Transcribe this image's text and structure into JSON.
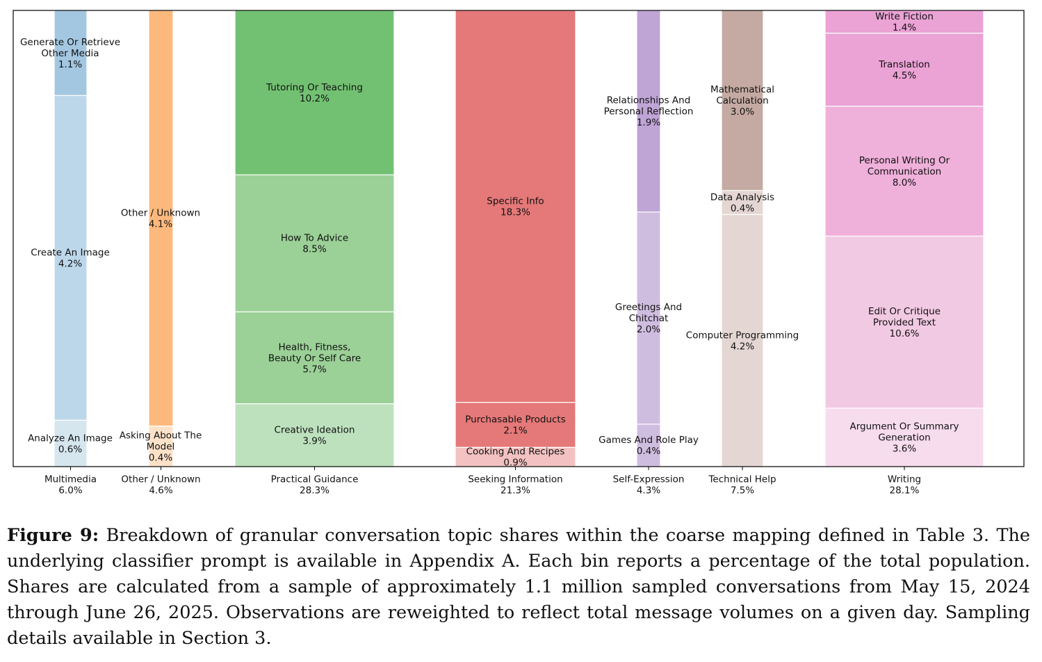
{
  "chart_data": {
    "type": "bar",
    "ylim": [
      0,
      1
    ],
    "grid": false,
    "columns": [
      {
        "label": "Multimedia",
        "share": "6.0%",
        "segments": [
          {
            "label": "Analyze An Image",
            "value": 0.6,
            "text": "0.6%",
            "color": "#d6e6ef"
          },
          {
            "label": "Create An Image",
            "value": 4.2,
            "text": "4.2%",
            "color": "#bdd7ea"
          },
          {
            "label": "Generate Or Retrieve\nOther Media",
            "value": 1.1,
            "text": "1.1%",
            "color": "#a4c7e1"
          }
        ]
      },
      {
        "label": "Other / Unknown",
        "share": "4.6%",
        "segments": [
          {
            "label": "Asking About The\nModel",
            "value": 0.4,
            "text": "0.4%",
            "color": "#fde2c8"
          },
          {
            "label": "Other / Unknown",
            "value": 4.1,
            "text": "4.1%",
            "color": "#fdb97d"
          }
        ]
      },
      {
        "label": "Practical Guidance",
        "share": "28.3%",
        "segments": [
          {
            "label": "Creative Ideation",
            "value": 3.9,
            "text": "3.9%",
            "color": "#bde1bd"
          },
          {
            "label": "Health, Fitness,\nBeauty Or Self Care",
            "value": 5.7,
            "text": "5.7%",
            "color": "#9bd097"
          },
          {
            "label": "How To Advice",
            "value": 8.5,
            "text": "8.5%",
            "color": "#9bd097"
          },
          {
            "label": "Tutoring Or Teaching",
            "value": 10.2,
            "text": "10.2%",
            "color": "#72c172"
          }
        ]
      },
      {
        "label": "Seeking Information",
        "share": "21.3%",
        "segments": [
          {
            "label": "Cooking And Recipes",
            "value": 0.9,
            "text": "0.9%",
            "color": "#f3c1c1"
          },
          {
            "label": "Purchasable Products",
            "value": 2.1,
            "text": "2.1%",
            "color": "#e57878"
          },
          {
            "label": "Specific Info",
            "value": 18.3,
            "text": "18.3%",
            "color": "#e57878"
          }
        ]
      },
      {
        "label": "Self-Expression",
        "share": "4.3%",
        "segments": [
          {
            "label": "Games And Role Play",
            "value": 0.4,
            "text": "0.4%",
            "color": "#cfbde0"
          },
          {
            "label": "Greetings And\nChitchat",
            "value": 2.0,
            "text": "2.0%",
            "color": "#cfbde0"
          },
          {
            "label": "Relationships And\nPersonal Reflection",
            "value": 1.9,
            "text": "1.9%",
            "color": "#bfa4d6"
          }
        ]
      },
      {
        "label": "Technical Help",
        "share": "7.5%",
        "segments": [
          {
            "label": "Computer Programming",
            "value": 4.2,
            "text": "4.2%",
            "color": "#e4d6d3"
          },
          {
            "label": "Data Analysis",
            "value": 0.4,
            "text": "0.4%",
            "color": "#e4d6d3"
          },
          {
            "label": "Mathematical\nCalculation",
            "value": 3.0,
            "text": "3.0%",
            "color": "#c4aaa2"
          }
        ]
      },
      {
        "label": "Writing",
        "share": "28.1%",
        "segments": [
          {
            "label": "Argument Or Summary\nGeneration",
            "value": 3.6,
            "text": "3.6%",
            "color": "#f7dcee"
          },
          {
            "label": "Edit Or Critique\nProvided Text",
            "value": 10.6,
            "text": "10.6%",
            "color": "#f2c9e3"
          },
          {
            "label": "Personal Writing Or\nCommunication",
            "value": 8.0,
            "text": "8.0%",
            "color": "#efb0da"
          },
          {
            "label": "Translation",
            "value": 4.5,
            "text": "4.5%",
            "color": "#eba2d5"
          },
          {
            "label": "Write Fiction",
            "value": 1.4,
            "text": "1.4%",
            "color": "#eba2d5"
          }
        ]
      }
    ]
  },
  "caption": {
    "label": "Figure 9:",
    "text": "Breakdown of granular conversation topic shares within the coarse mapping defined in Table 3. The underlying classifier prompt is available in Appendix A. Each bin reports a percentage of the total population. Shares are calculated from a sample of approximately 1.1 million sampled conversations from May 15, 2024 through June 26, 2025. Observations are reweighted to reflect total message volumes on a given day. Sampling details available in Section 3."
  }
}
